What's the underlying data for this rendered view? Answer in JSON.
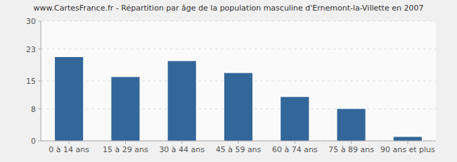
{
  "chart_data": {
    "type": "bar",
    "title": "www.CartesFrance.fr - Répartition par âge de la population masculine d'Ernemont-la-Villette en 2007",
    "categories": [
      "0 à 14 ans",
      "15 à 29 ans",
      "30 à 44 ans",
      "45 à 59 ans",
      "60 à 74 ans",
      "75 à 89 ans",
      "90 ans et plus"
    ],
    "values": [
      21,
      16,
      20,
      17,
      11,
      8,
      1
    ],
    "color": "#336699",
    "ylim": [
      0,
      30
    ],
    "yticks": [
      0,
      8,
      15,
      23,
      30
    ],
    "grid": true
  }
}
